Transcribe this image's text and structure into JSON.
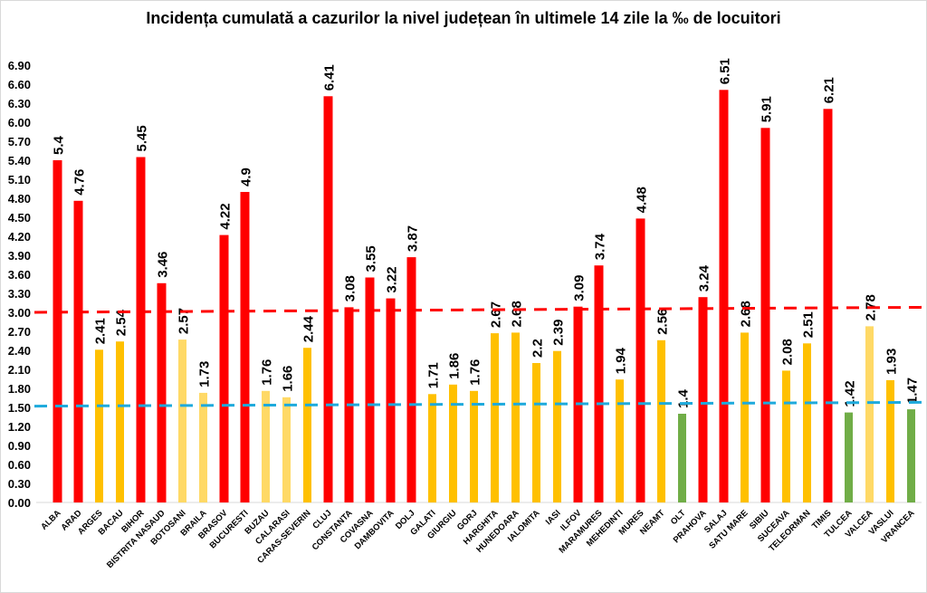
{
  "chart_data": {
    "type": "bar",
    "title": "Incidența cumulată a cazurilor la nivel județean în ultimele 14 zile la ‰ de locuitori",
    "xlabel": "",
    "ylabel": "",
    "ylim": [
      0,
      6.9
    ],
    "yticks": [
      "0.00",
      "0.30",
      "0.60",
      "0.90",
      "1.20",
      "1.50",
      "1.80",
      "2.10",
      "2.40",
      "2.70",
      "3.00",
      "3.30",
      "3.60",
      "3.90",
      "4.20",
      "4.50",
      "4.80",
      "5.10",
      "5.40",
      "5.70",
      "6.00",
      "6.30",
      "6.60",
      "6.90"
    ],
    "grid": false,
    "legend": "none",
    "colors": {
      "red": "#FF0000",
      "yellow": "#FFC000",
      "light_yellow": "#FFD966",
      "green": "#70AD47",
      "ref_red": "#FF0000",
      "ref_blue": "#1EAADC"
    },
    "categories": [
      "ALBA",
      "ARAD",
      "ARGES",
      "BACAU",
      "BIHOR",
      "BISTRITA NASAUD",
      "BOTOSANI",
      "BRAILA",
      "BRASOV",
      "BUCURESTI",
      "BUZAU",
      "CALARASI",
      "CARAS-SEVERIN",
      "CLUJ",
      "CONSTANTA",
      "COVASNA",
      "DAMBOVITA",
      "DOLJ",
      "GALATI",
      "GIURGIU",
      "GORJ",
      "HARGHITA",
      "HUNEDOARA",
      "IALOMITA",
      "IASI",
      "ILFOV",
      "MARAMURES",
      "MEHEDINTI",
      "MURES",
      "NEAMT",
      "OLT",
      "PRAHOVA",
      "SALAJ",
      "SATU MARE",
      "SIBIU",
      "SUCEAVA",
      "TELEORMAN",
      "TIMIS",
      "TULCEA",
      "VALCEA",
      "VASLUI",
      "VRANCEA"
    ],
    "values": [
      5.4,
      4.76,
      2.41,
      2.54,
      5.45,
      3.46,
      2.57,
      1.73,
      4.22,
      4.9,
      1.76,
      1.66,
      2.44,
      6.41,
      3.08,
      3.55,
      3.22,
      3.87,
      1.71,
      1.86,
      1.76,
      2.67,
      2.68,
      2.2,
      2.39,
      3.09,
      3.74,
      1.94,
      4.48,
      2.56,
      1.4,
      3.24,
      6.51,
      2.68,
      5.91,
      2.08,
      2.51,
      6.21,
      1.42,
      2.78,
      1.93,
      1.47
    ],
    "labels": [
      "5.4",
      "4.76",
      "2.41",
      "2.54",
      "5.45",
      "3.46",
      "2.57",
      "1.73",
      "4.22",
      "4.9",
      "1.76",
      "1.66",
      "2.44",
      "6.41",
      "3.08",
      "3.55",
      "3.22",
      "3.87",
      "1.71",
      "1.86",
      "1.76",
      "2.67",
      "2.68",
      "2.2",
      "2.39",
      "3.09",
      "3.74",
      "1.94",
      "4.48",
      "2.56",
      "1.4",
      "3.24",
      "6.51",
      "2.68",
      "5.91",
      "2.08",
      "2.51",
      "6.21",
      "1.42",
      "2.78",
      "1.93",
      "1.47"
    ],
    "bar_colors": [
      "red",
      "red",
      "yellow",
      "yellow",
      "red",
      "red",
      "light_yellow",
      "light_yellow",
      "red",
      "red",
      "light_yellow",
      "light_yellow",
      "yellow",
      "red",
      "red",
      "red",
      "red",
      "red",
      "yellow",
      "yellow",
      "yellow",
      "yellow",
      "yellow",
      "yellow",
      "yellow",
      "red",
      "red",
      "yellow",
      "red",
      "yellow",
      "green",
      "red",
      "red",
      "yellow",
      "red",
      "yellow",
      "yellow",
      "red",
      "green",
      "light_yellow",
      "yellow",
      "green"
    ],
    "reference_lines": [
      {
        "color": "ref_red",
        "style": "dashed",
        "start": 3.0,
        "end": 3.08
      },
      {
        "color": "ref_blue",
        "style": "dashed",
        "start": 1.52,
        "end": 1.58
      }
    ]
  }
}
